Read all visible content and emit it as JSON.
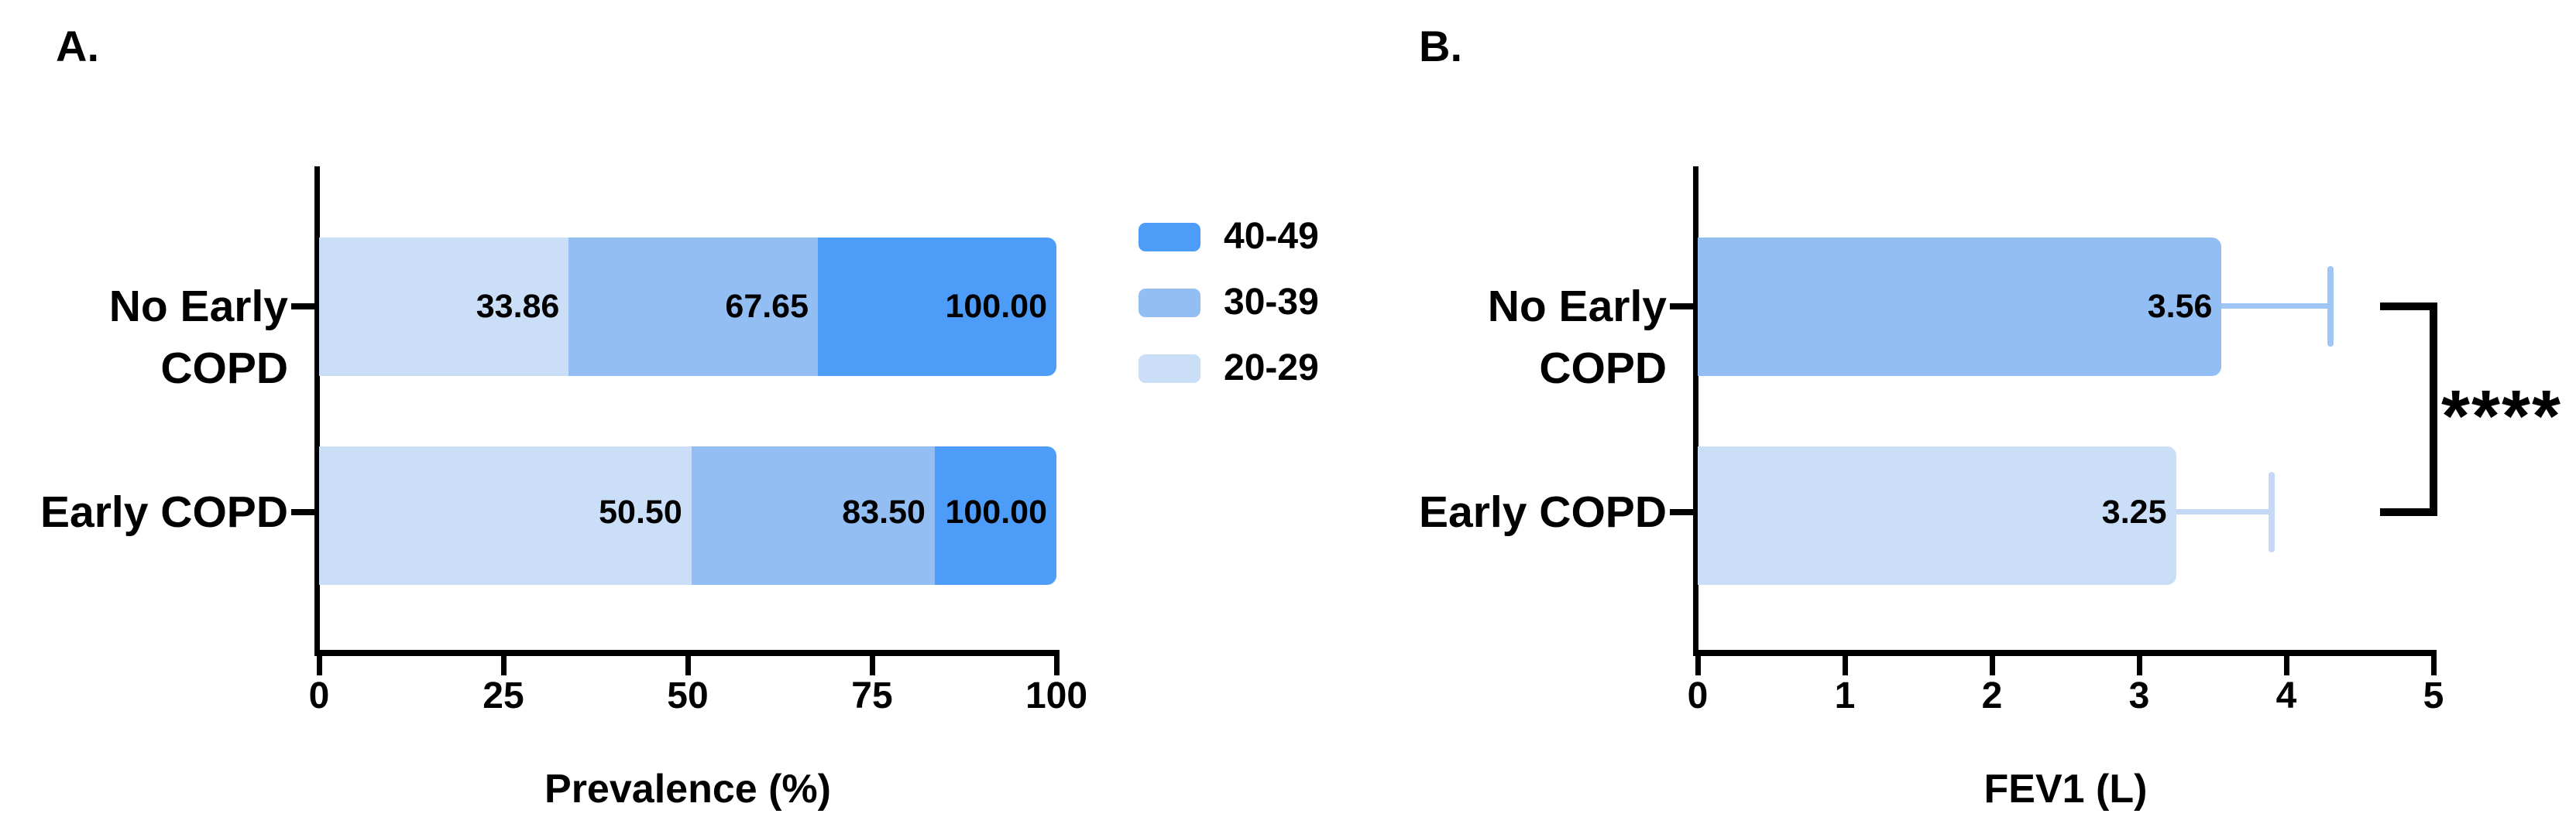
{
  "figure": {
    "panels": [
      {
        "letter": "A."
      },
      {
        "letter": "B."
      }
    ]
  },
  "chart_data": [
    {
      "type": "bar",
      "orientation": "horizontal-stacked",
      "categories": [
        "No Early COPD",
        "Early COPD"
      ],
      "series": [
        {
          "name": "20-29",
          "color": "#CBDEF7",
          "cumulative_values": [
            33.86,
            50.5
          ],
          "labels": [
            "33.86",
            "50.50"
          ]
        },
        {
          "name": "30-39",
          "color": "#92BEF3",
          "cumulative_values": [
            67.65,
            83.5
          ],
          "labels": [
            "67.65",
            "83.50"
          ]
        },
        {
          "name": "40-49",
          "color": "#4D9DF8",
          "cumulative_values": [
            100.0,
            100.0
          ],
          "labels": [
            "100.00",
            "100.00"
          ]
        }
      ],
      "xlabel": "Prevalence (%)",
      "xlim": [
        0,
        100
      ],
      "xticks": [
        0,
        25,
        50,
        75,
        100
      ],
      "grid": false,
      "legend": {
        "position": "right",
        "entries": [
          "40-49",
          "30-39",
          "20-29"
        ],
        "colors": [
          "#4D9DF8",
          "#92BEF3",
          "#CBDEF7"
        ]
      }
    },
    {
      "type": "bar",
      "orientation": "horizontal",
      "categories": [
        "No Early COPD",
        "Early COPD"
      ],
      "values": [
        3.56,
        3.25
      ],
      "value_labels": [
        "3.56",
        "3.25"
      ],
      "bar_colors": [
        "#92BEF3",
        "#CBDEF7"
      ],
      "error_bar_colors": [
        "#9FC5F4",
        "#C5D9F6"
      ],
      "error_upper": [
        4.3,
        3.9
      ],
      "xlabel": "FEV1 (L)",
      "xlim": [
        0,
        5
      ],
      "xticks": [
        0,
        1,
        2,
        3,
        4,
        5
      ],
      "grid": false,
      "significance": {
        "label": "****",
        "between": [
          "No Early COPD",
          "Early COPD"
        ]
      }
    }
  ]
}
